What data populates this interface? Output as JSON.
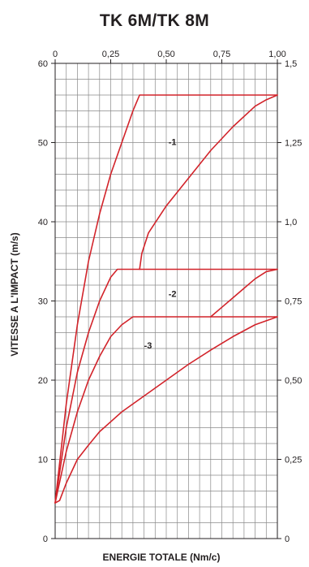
{
  "chart_data": {
    "type": "line",
    "title": "TK 6M/TK 8M",
    "xlabel": "ENERGIE TOTALE (Nm/c)",
    "ylabel": "VITESSE A L'IMPACT (m/s)",
    "x_ticks": [
      "0",
      "0,25",
      "0,50",
      "0,75",
      "1,00"
    ],
    "y_ticks": [
      "0",
      "10",
      "20",
      "30",
      "40",
      "50",
      "60"
    ],
    "right_ticks": [
      "0",
      "0,25",
      "0,50",
      "0,75",
      "1,0",
      "1,25",
      "1,5"
    ],
    "xlim": [
      0,
      1.0
    ],
    "ylim": [
      0,
      60
    ],
    "right_ylim": [
      0,
      1.5
    ],
    "grid": true,
    "colors": {
      "curve": "#d2232a",
      "grid": "#8a8a8a",
      "axis": "#231f20"
    },
    "series": [
      {
        "label": "-1",
        "label_pos": [
          0.51,
          49.7
        ],
        "x": [
          0,
          0.05,
          0.1,
          0.15,
          0.2,
          0.25,
          0.3,
          0.35,
          0.38,
          0.4,
          1.0
        ],
        "y": [
          4.5,
          17,
          27,
          35,
          41,
          46,
          50,
          54,
          56,
          56,
          56
        ]
      },
      {
        "label": "",
        "label_pos": null,
        "x": [
          0.38,
          0.39,
          0.42,
          0.5,
          0.6,
          0.7,
          0.8,
          0.9,
          0.95,
          1.0
        ],
        "y": [
          34,
          36,
          38.6,
          42,
          45.5,
          49,
          52,
          54.6,
          55.4,
          56
        ]
      },
      {
        "label": "-2",
        "label_pos": [
          0.51,
          30.5
        ],
        "x": [
          0,
          0.05,
          0.1,
          0.15,
          0.2,
          0.25,
          0.28,
          0.3,
          1.0
        ],
        "y": [
          4.5,
          14,
          21,
          26,
          30,
          33,
          34,
          34,
          34
        ]
      },
      {
        "label": "",
        "label_pos": null,
        "x": [
          0.7,
          0.75,
          0.8,
          0.85,
          0.9,
          0.95,
          1.0
        ],
        "y": [
          28,
          29.2,
          30.4,
          31.6,
          32.8,
          33.7,
          34
        ]
      },
      {
        "label": "-3",
        "label_pos": [
          0.4,
          24
        ],
        "x": [
          0,
          0.05,
          0.1,
          0.15,
          0.2,
          0.25,
          0.3,
          0.35,
          0.38,
          0.4,
          1.0
        ],
        "y": [
          4.5,
          11,
          16,
          20,
          23,
          25.5,
          27,
          28,
          28,
          28,
          28
        ]
      },
      {
        "label": "",
        "label_pos": null,
        "x": [
          0,
          0.02,
          0.05,
          0.1,
          0.15,
          0.2,
          0.3,
          0.4,
          0.5,
          0.6,
          0.7,
          0.8,
          0.9,
          1.0
        ],
        "y": [
          4.5,
          4.8,
          7,
          10,
          11.8,
          13.5,
          16,
          18,
          20,
          22,
          23.8,
          25.5,
          27,
          28
        ]
      }
    ]
  }
}
